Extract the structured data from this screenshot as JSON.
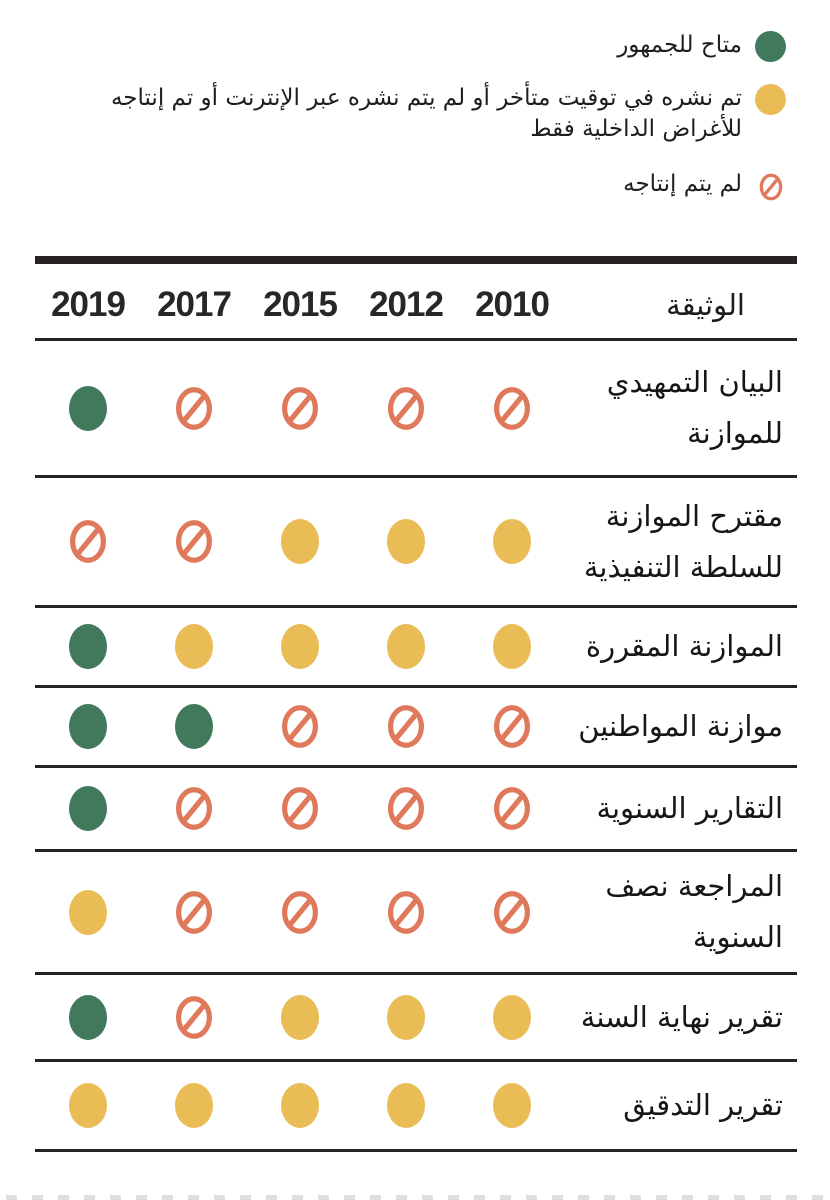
{
  "chart_data": {
    "type": "table",
    "title": "",
    "document_column_header": "الوثيقة",
    "years": [
      "2019",
      "2017",
      "2015",
      "2012",
      "2010"
    ],
    "legend": [
      {
        "status": "available",
        "label": "متاح للجمهور"
      },
      {
        "status": "late_or_internal",
        "label": "تم نشره في توقيت متأخر أو لم يتم نشره عبر الإنترنت أو تم إنتاجه للأغراض الداخلية فقط"
      },
      {
        "status": "not_produced",
        "label": "لم يتم إنتاجه"
      }
    ],
    "rows": [
      {
        "document": "البيان التمهيدي للموازنة",
        "statuses": [
          "available",
          "not_produced",
          "not_produced",
          "not_produced",
          "not_produced"
        ]
      },
      {
        "document": "مقترح الموازنة للسلطة التنفيذية",
        "statuses": [
          "not_produced",
          "not_produced",
          "late_or_internal",
          "late_or_internal",
          "late_or_internal"
        ]
      },
      {
        "document": "الموازنة المقررة",
        "statuses": [
          "available",
          "late_or_internal",
          "late_or_internal",
          "late_or_internal",
          "late_or_internal"
        ]
      },
      {
        "document": "موازنة المواطنين",
        "statuses": [
          "available",
          "available",
          "not_produced",
          "not_produced",
          "not_produced"
        ]
      },
      {
        "document": "التقارير السنوية",
        "statuses": [
          "available",
          "not_produced",
          "not_produced",
          "not_produced",
          "not_produced"
        ]
      },
      {
        "document": "المراجعة نصف السنوية",
        "statuses": [
          "late_or_internal",
          "not_produced",
          "not_produced",
          "not_produced",
          "not_produced"
        ]
      },
      {
        "document": "تقرير نهاية السنة",
        "statuses": [
          "available",
          "not_produced",
          "late_or_internal",
          "late_or_internal",
          "late_or_internal"
        ]
      },
      {
        "document": "تقرير التدقيق",
        "statuses": [
          "late_or_internal",
          "late_or_internal",
          "late_or_internal",
          "late_or_internal",
          "late_or_internal"
        ]
      }
    ],
    "status_colors": {
      "available": "#40795C",
      "late_or_internal": "#E9BC56",
      "not_produced": "#E0795B",
      "rule": "#272223"
    },
    "layout": {
      "legend_position": "top-right",
      "grid": "horizontal-rules"
    }
  }
}
